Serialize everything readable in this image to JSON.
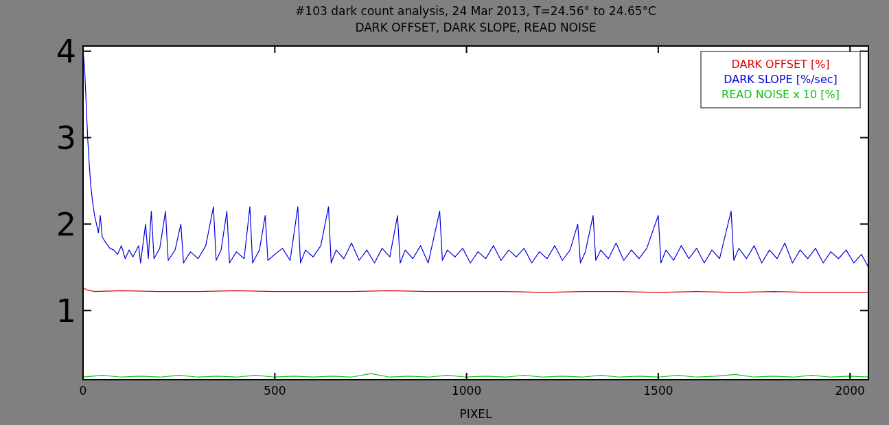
{
  "chart_data": {
    "type": "line",
    "title": "#103 dark count analysis, 24 Mar 2013, T=24.56° to 24.65°C",
    "subtitle": "DARK OFFSET, DARK SLOPE, READ NOISE",
    "xlabel": "PIXEL",
    "xlim": [
      0,
      2048
    ],
    "xticks": [
      0,
      500,
      1000,
      1500,
      2000
    ],
    "ylim": [
      0.2,
      4.06
    ],
    "yticks": [
      1,
      2,
      3,
      4
    ],
    "grid": false,
    "legend": "top right",
    "line_style": "solid",
    "marker": "none",
    "series": [
      {
        "name": "DARK OFFSET [%]",
        "color": "#e00000",
        "x": [
          0,
          10,
          30,
          100,
          200,
          300,
          400,
          500,
          600,
          700,
          800,
          900,
          1000,
          1100,
          1200,
          1300,
          1400,
          1500,
          1600,
          1700,
          1800,
          1900,
          2000,
          2048
        ],
        "values": [
          1.26,
          1.24,
          1.22,
          1.23,
          1.22,
          1.22,
          1.23,
          1.22,
          1.22,
          1.22,
          1.23,
          1.22,
          1.22,
          1.22,
          1.21,
          1.22,
          1.22,
          1.21,
          1.22,
          1.21,
          1.22,
          1.21,
          1.21,
          1.21
        ]
      },
      {
        "name": "DARK SLOPE [%/sec]",
        "color": "#0000e0",
        "x": [
          0,
          4,
          8,
          12,
          16,
          20,
          25,
          30,
          35,
          40,
          45,
          50,
          60,
          70,
          80,
          90,
          100,
          110,
          120,
          130,
          145,
          150,
          163,
          170,
          178,
          185,
          200,
          215,
          222,
          240,
          255,
          262,
          280,
          300,
          320,
          340,
          347,
          360,
          375,
          382,
          400,
          420,
          435,
          442,
          460,
          475,
          482,
          500,
          520,
          540,
          560,
          567,
          580,
          600,
          620,
          640,
          647,
          660,
          680,
          700,
          720,
          740,
          760,
          780,
          800,
          820,
          827,
          840,
          860,
          880,
          900,
          930,
          937,
          950,
          970,
          990,
          1010,
          1030,
          1050,
          1070,
          1090,
          1110,
          1130,
          1150,
          1170,
          1190,
          1210,
          1230,
          1250,
          1270,
          1290,
          1297,
          1310,
          1330,
          1337,
          1350,
          1370,
          1390,
          1410,
          1430,
          1450,
          1470,
          1500,
          1507,
          1520,
          1540,
          1560,
          1580,
          1600,
          1620,
          1640,
          1660,
          1690,
          1697,
          1710,
          1730,
          1750,
          1770,
          1790,
          1810,
          1830,
          1850,
          1870,
          1890,
          1910,
          1930,
          1950,
          1970,
          1990,
          2010,
          2030,
          2048
        ],
        "values": [
          4.0,
          3.8,
          3.4,
          3.0,
          2.7,
          2.45,
          2.25,
          2.1,
          2.0,
          1.9,
          2.1,
          1.85,
          1.78,
          1.72,
          1.7,
          1.65,
          1.75,
          1.6,
          1.7,
          1.62,
          1.75,
          1.55,
          2.0,
          1.6,
          2.15,
          1.6,
          1.72,
          2.15,
          1.58,
          1.7,
          2.0,
          1.55,
          1.68,
          1.6,
          1.75,
          2.2,
          1.58,
          1.7,
          2.15,
          1.55,
          1.68,
          1.6,
          2.2,
          1.55,
          1.7,
          2.1,
          1.58,
          1.65,
          1.72,
          1.58,
          2.2,
          1.55,
          1.7,
          1.62,
          1.75,
          2.2,
          1.55,
          1.7,
          1.6,
          1.78,
          1.58,
          1.7,
          1.55,
          1.72,
          1.62,
          2.1,
          1.55,
          1.7,
          1.6,
          1.75,
          1.55,
          2.15,
          1.58,
          1.7,
          1.62,
          1.72,
          1.55,
          1.68,
          1.6,
          1.75,
          1.58,
          1.7,
          1.62,
          1.72,
          1.55,
          1.68,
          1.6,
          1.75,
          1.58,
          1.7,
          2.0,
          1.55,
          1.68,
          2.1,
          1.58,
          1.7,
          1.6,
          1.78,
          1.58,
          1.7,
          1.6,
          1.72,
          2.1,
          1.55,
          1.7,
          1.58,
          1.75,
          1.6,
          1.72,
          1.55,
          1.7,
          1.6,
          2.15,
          1.58,
          1.72,
          1.6,
          1.75,
          1.55,
          1.7,
          1.6,
          1.78,
          1.55,
          1.7,
          1.6,
          1.72,
          1.55,
          1.68,
          1.6,
          1.7,
          1.55,
          1.65,
          1.5
        ]
      },
      {
        "name": "READ NOISE x 10 [%]",
        "color": "#10c010",
        "x": [
          0,
          50,
          100,
          150,
          200,
          250,
          300,
          350,
          400,
          450,
          500,
          550,
          600,
          650,
          700,
          750,
          800,
          850,
          900,
          950,
          1000,
          1050,
          1100,
          1150,
          1200,
          1250,
          1300,
          1350,
          1400,
          1450,
          1500,
          1550,
          1600,
          1650,
          1700,
          1750,
          1800,
          1850,
          1900,
          1950,
          2000,
          2048
        ],
        "values": [
          0.23,
          0.25,
          0.23,
          0.24,
          0.23,
          0.25,
          0.23,
          0.24,
          0.23,
          0.25,
          0.23,
          0.24,
          0.23,
          0.24,
          0.23,
          0.27,
          0.23,
          0.24,
          0.23,
          0.25,
          0.23,
          0.24,
          0.23,
          0.25,
          0.23,
          0.24,
          0.23,
          0.25,
          0.23,
          0.24,
          0.23,
          0.25,
          0.23,
          0.24,
          0.26,
          0.23,
          0.24,
          0.23,
          0.25,
          0.23,
          0.24,
          0.23
        ]
      }
    ]
  }
}
